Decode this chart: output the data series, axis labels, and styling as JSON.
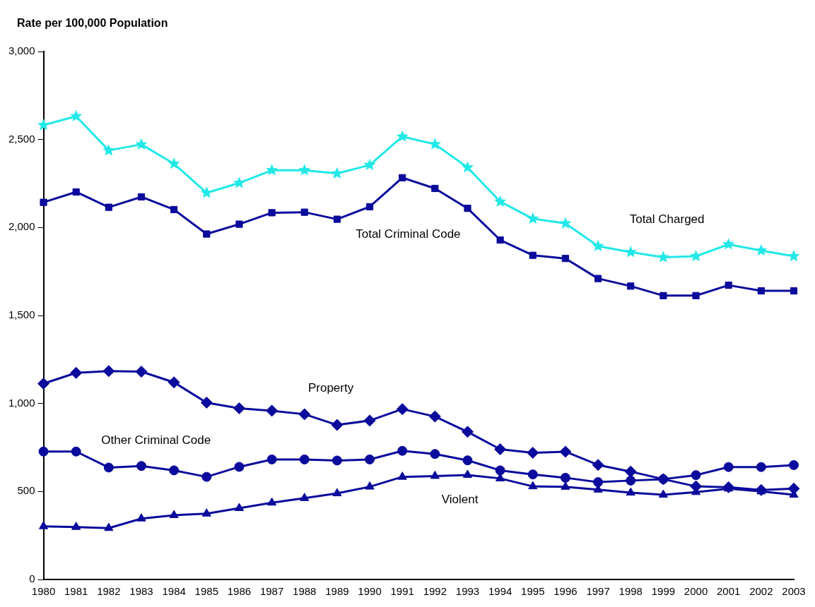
{
  "chart_data": {
    "type": "line",
    "ylabel": "Rate per 100,000 Population",
    "categories": [
      "1980",
      "1981",
      "1982",
      "1983",
      "1984",
      "1985",
      "1986",
      "1987",
      "1988",
      "1989",
      "1990",
      "1991",
      "1992",
      "1993",
      "1994",
      "1995",
      "1996",
      "1997",
      "1998",
      "1999",
      "2000",
      "2001",
      "2002",
      "2003"
    ],
    "series": [
      {
        "name": "Total Charged",
        "color": "#22e8e8",
        "marker": "star",
        "values": [
          2582,
          2632,
          2438,
          2472,
          2362,
          2197,
          2253,
          2325,
          2325,
          2307,
          2355,
          2517,
          2473,
          2341,
          2147,
          2050,
          2023,
          1894,
          1860,
          1831,
          1837,
          1904,
          1869,
          1837
        ]
      },
      {
        "name": "Total Criminal Code",
        "color": "#0a0a9c",
        "marker": "square",
        "values": [
          2143,
          2202,
          2115,
          2174,
          2102,
          1963,
          2019,
          2084,
          2087,
          2047,
          2118,
          2283,
          2222,
          2109,
          1929,
          1842,
          1824,
          1710,
          1667,
          1613,
          1613,
          1672,
          1640,
          1640
        ]
      },
      {
        "name": "Property",
        "color": "#0a0a9c",
        "marker": "diamond",
        "values": [
          1113,
          1174,
          1184,
          1181,
          1120,
          1005,
          973,
          959,
          939,
          878,
          903,
          968,
          926,
          839,
          740,
          720,
          726,
          651,
          613,
          570,
          529,
          524,
          508,
          516
        ]
      },
      {
        "name": "Other Criminal Code",
        "color": "#0a0a9c",
        "marker": "circle",
        "values": [
          727,
          727,
          636,
          645,
          620,
          583,
          640,
          682,
          682,
          676,
          682,
          731,
          713,
          677,
          620,
          597,
          578,
          553,
          562,
          570,
          593,
          639,
          639,
          650
        ]
      },
      {
        "name": "Violent",
        "color": "#0a0a9c",
        "marker": "triangle",
        "values": [
          302,
          298,
          292,
          346,
          365,
          374,
          405,
          436,
          462,
          489,
          527,
          583,
          588,
          594,
          574,
          529,
          526,
          510,
          493,
          481,
          496,
          516,
          500,
          481
        ]
      }
    ],
    "ylim": [
      0,
      3000
    ],
    "yticks": [
      {
        "value": 0,
        "label": "0"
      },
      {
        "value": 500,
        "label": "500"
      },
      {
        "value": 1000,
        "label": "1,000"
      },
      {
        "value": 1500,
        "label": "1,500"
      },
      {
        "value": 2000,
        "label": "2,000"
      },
      {
        "value": 2500,
        "label": "2,500"
      },
      {
        "value": 3000,
        "label": "3,000"
      }
    ],
    "grid": false,
    "legend": false,
    "line_style": "solid"
  }
}
